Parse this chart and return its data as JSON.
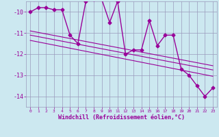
{
  "xlabel": "Windchill (Refroidissement éolien,°C)",
  "hours": [
    0,
    1,
    2,
    3,
    4,
    5,
    6,
    7,
    8,
    9,
    10,
    11,
    12,
    13,
    14,
    15,
    16,
    17,
    18,
    19,
    20,
    21,
    22,
    23
  ],
  "windchill": [
    -10.0,
    -9.8,
    -9.8,
    -9.9,
    -9.9,
    -11.1,
    -11.5,
    -9.5,
    -9.4,
    -9.4,
    -10.5,
    -9.5,
    -12.0,
    -11.8,
    -11.8,
    -10.4,
    -11.6,
    -11.1,
    -11.1,
    -12.7,
    -13.0,
    -13.5,
    -14.0,
    -13.6
  ],
  "line_color": "#990099",
  "bg_color": "#cce8f0",
  "grid_color": "#9999bb",
  "ylim": [
    -14.5,
    -9.5
  ],
  "yticks": [
    -14,
    -13,
    -12,
    -11,
    -10
  ],
  "xlim": [
    -0.5,
    23.5
  ],
  "marker": "D",
  "markersize": 2.5,
  "linewidth": 1.0,
  "trend_lines": [
    {
      "x": [
        0,
        23
      ],
      "y": [
        -10.9,
        -12.55
      ]
    },
    {
      "x": [
        0,
        23
      ],
      "y": [
        -11.1,
        -12.75
      ]
    },
    {
      "x": [
        0,
        23
      ],
      "y": [
        -11.35,
        -13.05
      ]
    }
  ],
  "trend_linewidth": 0.8,
  "xlabel_fontsize": 6,
  "ytick_fontsize": 6,
  "xtick_fontsize": 4.5
}
